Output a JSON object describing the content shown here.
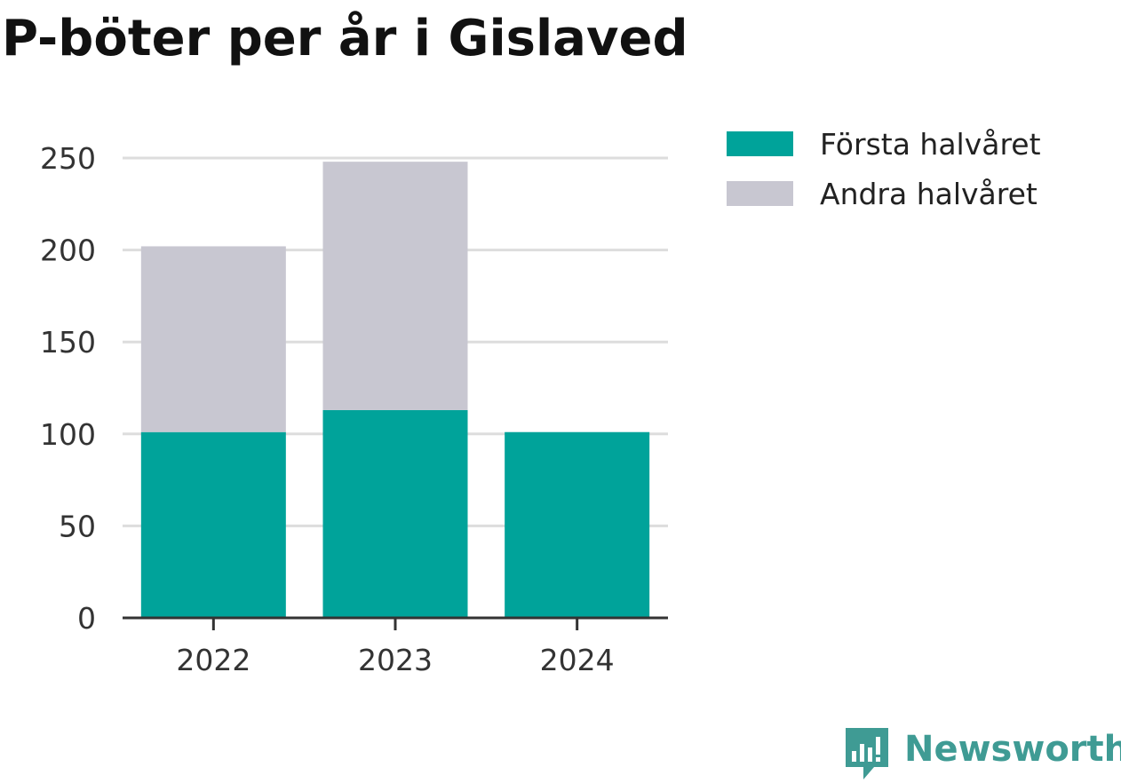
{
  "page": {
    "title": "P-böter per år i Gislaved"
  },
  "chart_data": {
    "type": "bar",
    "stacked": true,
    "title": "P-böter per år i Gislaved",
    "xlabel": "",
    "ylabel": "",
    "categories": [
      "2022",
      "2023",
      "2024"
    ],
    "series": [
      {
        "name": "Första halvåret",
        "values": [
          101,
          113,
          101
        ],
        "color": "#00a39a"
      },
      {
        "name": "Andra halvåret",
        "values": [
          101,
          135,
          null
        ],
        "color": "#c8c7d1"
      }
    ],
    "ylim": [
      0,
      250
    ],
    "yticks": [
      0,
      50,
      100,
      150,
      200,
      250
    ],
    "grid": true,
    "legend_position": "top-right"
  },
  "brand": {
    "name": "Newsworthy",
    "icon": "newsworthy-logo-icon",
    "color": "#3f9b94"
  }
}
